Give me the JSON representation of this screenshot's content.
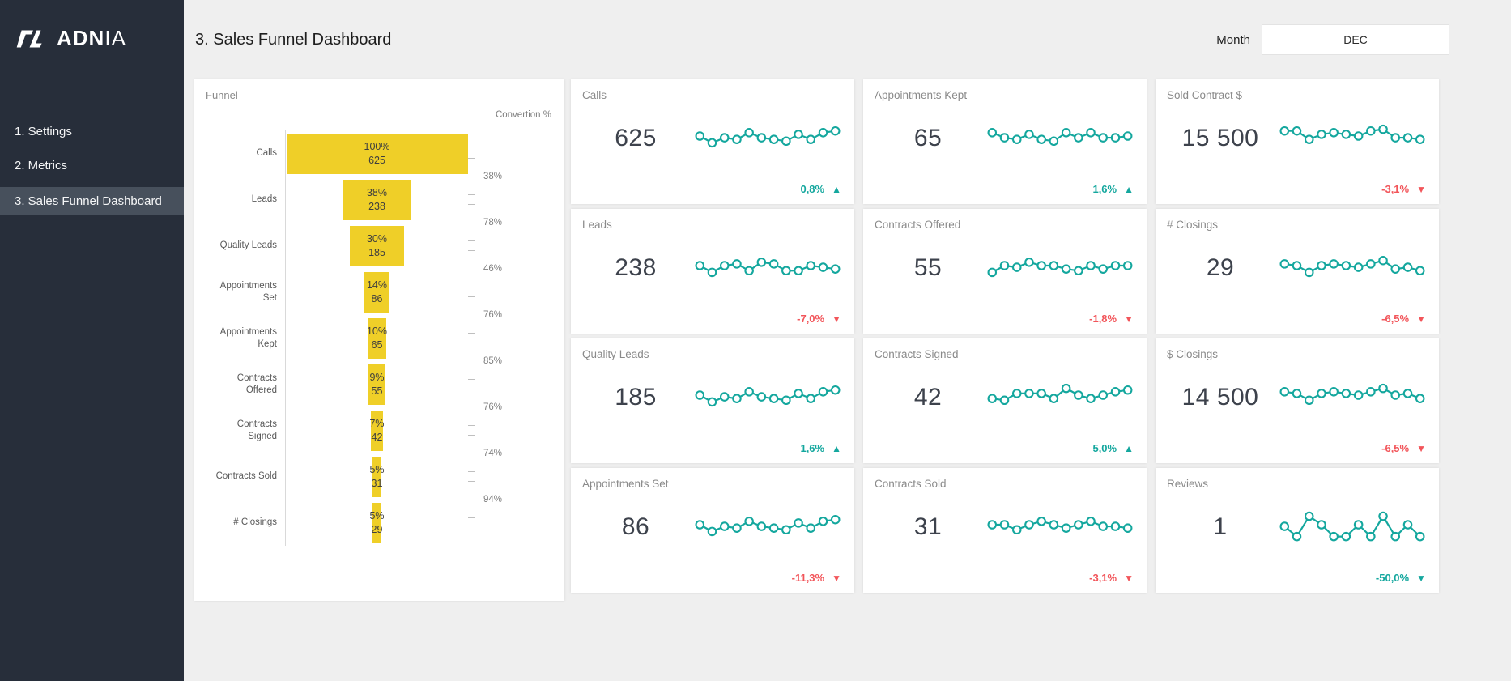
{
  "colors": {
    "sidebar_bg": "#272E3A",
    "sidebar_active_bg": "#47505C",
    "page_bg": "#EFEFEF",
    "accent_teal": "#14A79E",
    "negative_red": "#F2555A",
    "funnel_yellow": "#EFCF28"
  },
  "sidebar": {
    "logo_bold": "ADN",
    "logo_light": "IA",
    "items": [
      {
        "label": "1. Settings",
        "active": false
      },
      {
        "label": "2. Metrics",
        "active": false
      },
      {
        "label": "3. Sales Funnel Dashboard",
        "active": true
      }
    ]
  },
  "header": {
    "title": "3. Sales Funnel Dashboard",
    "month_label": "Month",
    "month_value": "DEC"
  },
  "funnel": {
    "title": "Funnel",
    "conversion_header": "Convertion %",
    "stages": [
      {
        "label": "Calls",
        "pct": "100%",
        "value": "625",
        "width_pct": 100
      },
      {
        "label": "Leads",
        "pct": "38%",
        "value": "238",
        "width_pct": 38
      },
      {
        "label": "Quality Leads",
        "pct": "30%",
        "value": "185",
        "width_pct": 30
      },
      {
        "label": "Appointments Set",
        "pct": "14%",
        "value": "86",
        "width_pct": 14
      },
      {
        "label": "Appointments Kept",
        "pct": "10%",
        "value": "65",
        "width_pct": 10
      },
      {
        "label": "Contracts Offered",
        "pct": "9%",
        "value": "55",
        "width_pct": 9
      },
      {
        "label": "Contracts Signed",
        "pct": "7%",
        "value": "42",
        "width_pct": 7
      },
      {
        "label": "Contracts Sold",
        "pct": "5%",
        "value": "31",
        "width_pct": 5
      },
      {
        "label": "# Closings",
        "pct": "5%",
        "value": "29",
        "width_pct": 5
      }
    ],
    "conversions": [
      "38%",
      "78%",
      "46%",
      "76%",
      "85%",
      "76%",
      "74%",
      "94%"
    ]
  },
  "cards": [
    {
      "title": "Calls",
      "value": "625",
      "delta": "0,8%",
      "direction": "up",
      "tone": "positive",
      "spark": [
        5.5,
        3.5,
        5,
        4.5,
        6.5,
        5,
        4.5,
        4,
        6,
        4.5,
        6.5,
        7
      ]
    },
    {
      "title": "Appointments Kept",
      "value": "65",
      "delta": "1,6%",
      "direction": "up",
      "tone": "positive",
      "spark": [
        6.5,
        5,
        4.5,
        6,
        4.5,
        4,
        6.5,
        5,
        6.5,
        5,
        5,
        5.5
      ]
    },
    {
      "title": "Sold Contract $",
      "value": "15 500",
      "delta": "-3,1%",
      "direction": "down",
      "tone": "negative",
      "spark": [
        7,
        7,
        4.5,
        6,
        6.5,
        6,
        5.5,
        7,
        7.5,
        5,
        5,
        4.5
      ]
    },
    {
      "title": "Leads",
      "value": "238",
      "delta": "-7,0%",
      "direction": "down",
      "tone": "negative",
      "spark": [
        5.5,
        3.5,
        5.5,
        6,
        4,
        6.5,
        6,
        4,
        4,
        5.5,
        5,
        4.5
      ]
    },
    {
      "title": "Contracts Offered",
      "value": "55",
      "delta": "-1,8%",
      "direction": "down",
      "tone": "negative",
      "spark": [
        3.5,
        5.5,
        5,
        6.5,
        5.5,
        5.5,
        4.5,
        4,
        5.5,
        4.5,
        5.5,
        5.5
      ]
    },
    {
      "title": "# Closings",
      "value": "29",
      "delta": "-6,5%",
      "direction": "down",
      "tone": "negative",
      "spark": [
        6,
        5.5,
        3.5,
        5.5,
        6,
        5.5,
        5,
        6,
        7,
        4.5,
        5,
        4
      ]
    },
    {
      "title": "Quality Leads",
      "value": "185",
      "delta": "1,6%",
      "direction": "up",
      "tone": "positive",
      "spark": [
        5.5,
        3.5,
        5,
        4.5,
        6.5,
        5,
        4.5,
        4,
        6,
        4.5,
        6.5,
        7
      ]
    },
    {
      "title": "Contracts Signed",
      "value": "42",
      "delta": "5,0%",
      "direction": "up",
      "tone": "positive",
      "spark": [
        4.5,
        4,
        6,
        6,
        6,
        4.5,
        7.5,
        5.5,
        4.5,
        5.5,
        6.5,
        7
      ]
    },
    {
      "title": "$ Closings",
      "value": "14 500",
      "delta": "-6,5%",
      "direction": "down",
      "tone": "negative",
      "spark": [
        6.5,
        6,
        4,
        6,
        6.5,
        6,
        5.5,
        6.5,
        7.5,
        5.5,
        6,
        4.5
      ]
    },
    {
      "title": "Appointments Set",
      "value": "86",
      "delta": "-11,3%",
      "direction": "down",
      "tone": "negative",
      "spark": [
        5.5,
        3.5,
        5,
        4.5,
        6.5,
        5,
        4.5,
        4,
        6,
        4.5,
        6.5,
        7
      ]
    },
    {
      "title": "Contracts Sold",
      "value": "31",
      "delta": "-3,1%",
      "direction": "down",
      "tone": "negative",
      "spark": [
        5.5,
        5.5,
        4,
        5.5,
        6.5,
        5.5,
        4.5,
        5.5,
        6.5,
        5,
        5,
        4.5
      ]
    },
    {
      "title": "Reviews",
      "value": "1",
      "delta": "-50,0%",
      "direction": "down",
      "tone": "positive",
      "spark": [
        5,
        2,
        8,
        5.5,
        2,
        2,
        5.5,
        2,
        8,
        2,
        5.5,
        2
      ]
    }
  ],
  "chart_data": [
    {
      "type": "bar",
      "subtype": "centered-funnel",
      "title": "Funnel",
      "categories": [
        "Calls",
        "Leads",
        "Quality Leads",
        "Appointments Set",
        "Appointments Kept",
        "Contracts Offered",
        "Contracts Signed",
        "Contracts Sold",
        "# Closings"
      ],
      "values": [
        625,
        238,
        185,
        86,
        65,
        55,
        42,
        31,
        29
      ],
      "percent_of_top": [
        100,
        38,
        30,
        14,
        10,
        9,
        7,
        5,
        5
      ],
      "stage_to_stage_conversion_pct": [
        38,
        78,
        46,
        76,
        85,
        76,
        74,
        94
      ],
      "conversion_column_label": "Convertion %",
      "bar_color": "#EFCF28",
      "orientation": "horizontal",
      "grid": false
    },
    {
      "type": "line",
      "subtype": "sparklines",
      "marker": "open-circle",
      "line_color": "#14A79E",
      "x_points": 12,
      "ylim": [
        0,
        10
      ],
      "series": [
        {
          "name": "Calls",
          "values": [
            5.5,
            3.5,
            5,
            4.5,
            6.5,
            5,
            4.5,
            4,
            6,
            4.5,
            6.5,
            7
          ]
        },
        {
          "name": "Appointments Kept",
          "values": [
            6.5,
            5,
            4.5,
            6,
            4.5,
            4,
            6.5,
            5,
            6.5,
            5,
            5,
            5.5
          ]
        },
        {
          "name": "Sold Contract $",
          "values": [
            7,
            7,
            4.5,
            6,
            6.5,
            6,
            5.5,
            7,
            7.5,
            5,
            5,
            4.5
          ]
        },
        {
          "name": "Leads",
          "values": [
            5.5,
            3.5,
            5.5,
            6,
            4,
            6.5,
            6,
            4,
            4,
            5.5,
            5,
            4.5
          ]
        },
        {
          "name": "Contracts Offered",
          "values": [
            3.5,
            5.5,
            5,
            6.5,
            5.5,
            5.5,
            4.5,
            4,
            5.5,
            4.5,
            5.5,
            5.5
          ]
        },
        {
          "name": "# Closings",
          "values": [
            6,
            5.5,
            3.5,
            5.5,
            6,
            5.5,
            5,
            6,
            7,
            4.5,
            5,
            4
          ]
        },
        {
          "name": "Quality Leads",
          "values": [
            5.5,
            3.5,
            5,
            4.5,
            6.5,
            5,
            4.5,
            4,
            6,
            4.5,
            6.5,
            7
          ]
        },
        {
          "name": "Contracts Signed",
          "values": [
            4.5,
            4,
            6,
            6,
            6,
            4.5,
            7.5,
            5.5,
            4.5,
            5.5,
            6.5,
            7
          ]
        },
        {
          "name": "$ Closings",
          "values": [
            6.5,
            6,
            4,
            6,
            6.5,
            6,
            5.5,
            6.5,
            7.5,
            5.5,
            6,
            4.5
          ]
        },
        {
          "name": "Appointments Set",
          "values": [
            5.5,
            3.5,
            5,
            4.5,
            6.5,
            5,
            4.5,
            4,
            6,
            4.5,
            6.5,
            7
          ]
        },
        {
          "name": "Contracts Sold",
          "values": [
            5.5,
            5.5,
            4,
            5.5,
            6.5,
            5.5,
            4.5,
            5.5,
            6.5,
            5,
            5,
            4.5
          ]
        },
        {
          "name": "Reviews",
          "values": [
            5,
            2,
            8,
            5.5,
            2,
            2,
            5.5,
            2,
            8,
            2,
            5.5,
            2
          ]
        }
      ]
    }
  ]
}
